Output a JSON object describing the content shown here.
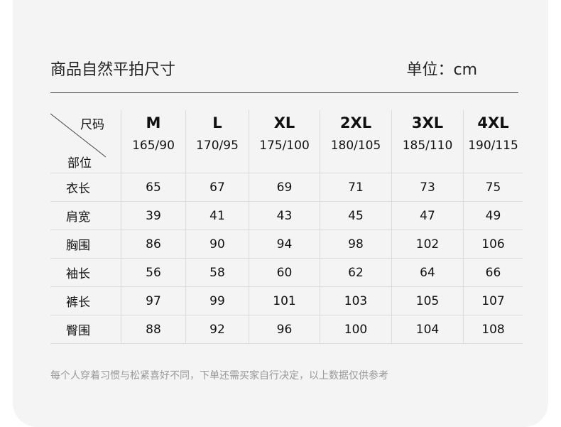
{
  "title": "商品自然平拍尺寸",
  "unit": "单位：cm",
  "corner": {
    "top": "尺码",
    "bottom": "部位"
  },
  "sizes": [
    {
      "size": "M",
      "dims": "165/90"
    },
    {
      "size": "L",
      "dims": "170/95"
    },
    {
      "size": "XL",
      "dims": "175/100"
    },
    {
      "size": "2XL",
      "dims": "180/105"
    },
    {
      "size": "3XL",
      "dims": "185/110"
    },
    {
      "size": "4XL",
      "dims": "190/115"
    }
  ],
  "rows": [
    {
      "label": "衣长",
      "values": [
        "65",
        "67",
        "69",
        "71",
        "73",
        "75"
      ]
    },
    {
      "label": "肩宽",
      "values": [
        "39",
        "41",
        "43",
        "45",
        "47",
        "49"
      ]
    },
    {
      "label": "胸围",
      "values": [
        "86",
        "90",
        "94",
        "98",
        "102",
        "106"
      ]
    },
    {
      "label": "袖长",
      "values": [
        "56",
        "58",
        "60",
        "62",
        "64",
        "66"
      ]
    },
    {
      "label": "裤长",
      "values": [
        "97",
        "99",
        "101",
        "103",
        "105",
        "107"
      ]
    },
    {
      "label": "臀围",
      "values": [
        "88",
        "92",
        "96",
        "100",
        "104",
        "108"
      ]
    }
  ],
  "note": "每个人穿着习惯与松紧喜好不同，下单还需买家自行决定，以上数据仅供参考"
}
